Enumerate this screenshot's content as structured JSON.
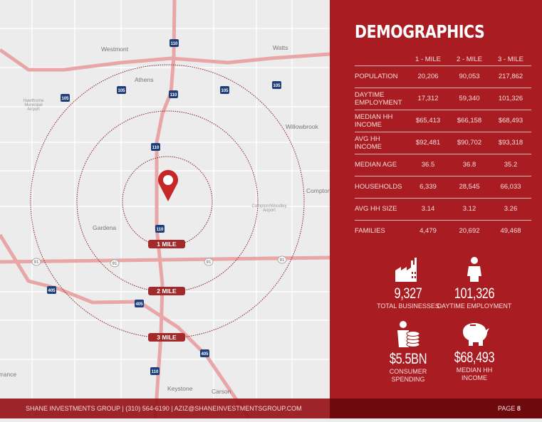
{
  "colors": {
    "panel": "#a91c22",
    "footer": "#6e0a0e",
    "pin": "#c62828",
    "road": "#e8a6a6"
  },
  "map": {
    "places": [
      "Westmont",
      "Watts",
      "Athens",
      "Hawthorne Municipal Airport",
      "Willowbrook",
      "Compton",
      "Compton/Woodley Airport",
      "Gardena",
      "Torrance",
      "Keystone",
      "Carson"
    ],
    "shields": [
      "110",
      "105",
      "91",
      "405"
    ],
    "rings": [
      "1 MILE",
      "2 MILE",
      "3 MILE"
    ],
    "pin_icon": "map-pin-icon"
  },
  "demographics": {
    "title": "DEMOGRAPHICS",
    "columns": [
      "",
      "1 - MILE",
      "2 - MILE",
      "3 - MILE"
    ],
    "rows": [
      {
        "label": "POPULATION",
        "values": [
          "20,206",
          "90,053",
          "217,862"
        ]
      },
      {
        "label": "DAYTIME EMPLOYMENT",
        "values": [
          "17,312",
          "59,340",
          "101,326"
        ]
      },
      {
        "label": "MEDIAN HH INCOME",
        "values": [
          "$65,413",
          "$66,158",
          "$68,493"
        ]
      },
      {
        "label": "AVG HH INCOME",
        "values": [
          "$92,481",
          "$90,702",
          "$93,318"
        ]
      },
      {
        "label": "MEDIAN AGE",
        "values": [
          "36.5",
          "36.8",
          "35.2"
        ]
      },
      {
        "label": "HOUSEHOLDS",
        "values": [
          "6,339",
          "28,545",
          "66,033"
        ]
      },
      {
        "label": "AVG HH SIZE",
        "values": [
          "3.14",
          "3.12",
          "3.26"
        ]
      },
      {
        "label": "FAMILIES",
        "values": [
          "4,479",
          "20,692",
          "49,468"
        ]
      }
    ]
  },
  "stats": [
    {
      "icon": "factory-icon",
      "value": "9,327",
      "label": "TOTAL BUSINESSES"
    },
    {
      "icon": "person-icon",
      "value": "101,326",
      "label": "DAYTIME EMPLOYMENT"
    },
    {
      "icon": "person-coins-icon",
      "value": "$5.5BN",
      "label": "CONSUMER SPENDING"
    },
    {
      "icon": "piggy-bank-icon",
      "value": "$68,493",
      "label": "MEDIAN HH INCOME"
    }
  ],
  "footer": {
    "contact": "SHANE INVESTMENTS GROUP | (310) 564-6190 | AZIZ@SHANEINVESTMENTSGROUP.COM",
    "page_label": "PAGE",
    "page_number": "8"
  }
}
